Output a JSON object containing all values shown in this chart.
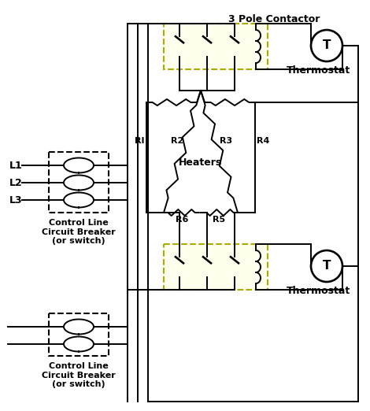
{
  "bg_color": "#ffffff",
  "line_color": "#000000",
  "yellow_fill": "#ffffee",
  "yellow_border": "#aaaa00",
  "text_3pole": "3 Pole Contactor",
  "text_thermostat": "Thermostat",
  "text_heaters": "Heaters",
  "text_r1": "RI",
  "text_r2": "R2",
  "text_r3": "R3",
  "text_r4": "R4",
  "text_r5": "R5",
  "text_r6": "R6",
  "text_l1": "L1",
  "text_l2": "L2",
  "text_l3": "L3",
  "text_cb1": "Control Line\nCircuit Breaker\n(or switch)",
  "text_cb2": "Control Line\nCircuit Breaker\n(or switch)"
}
